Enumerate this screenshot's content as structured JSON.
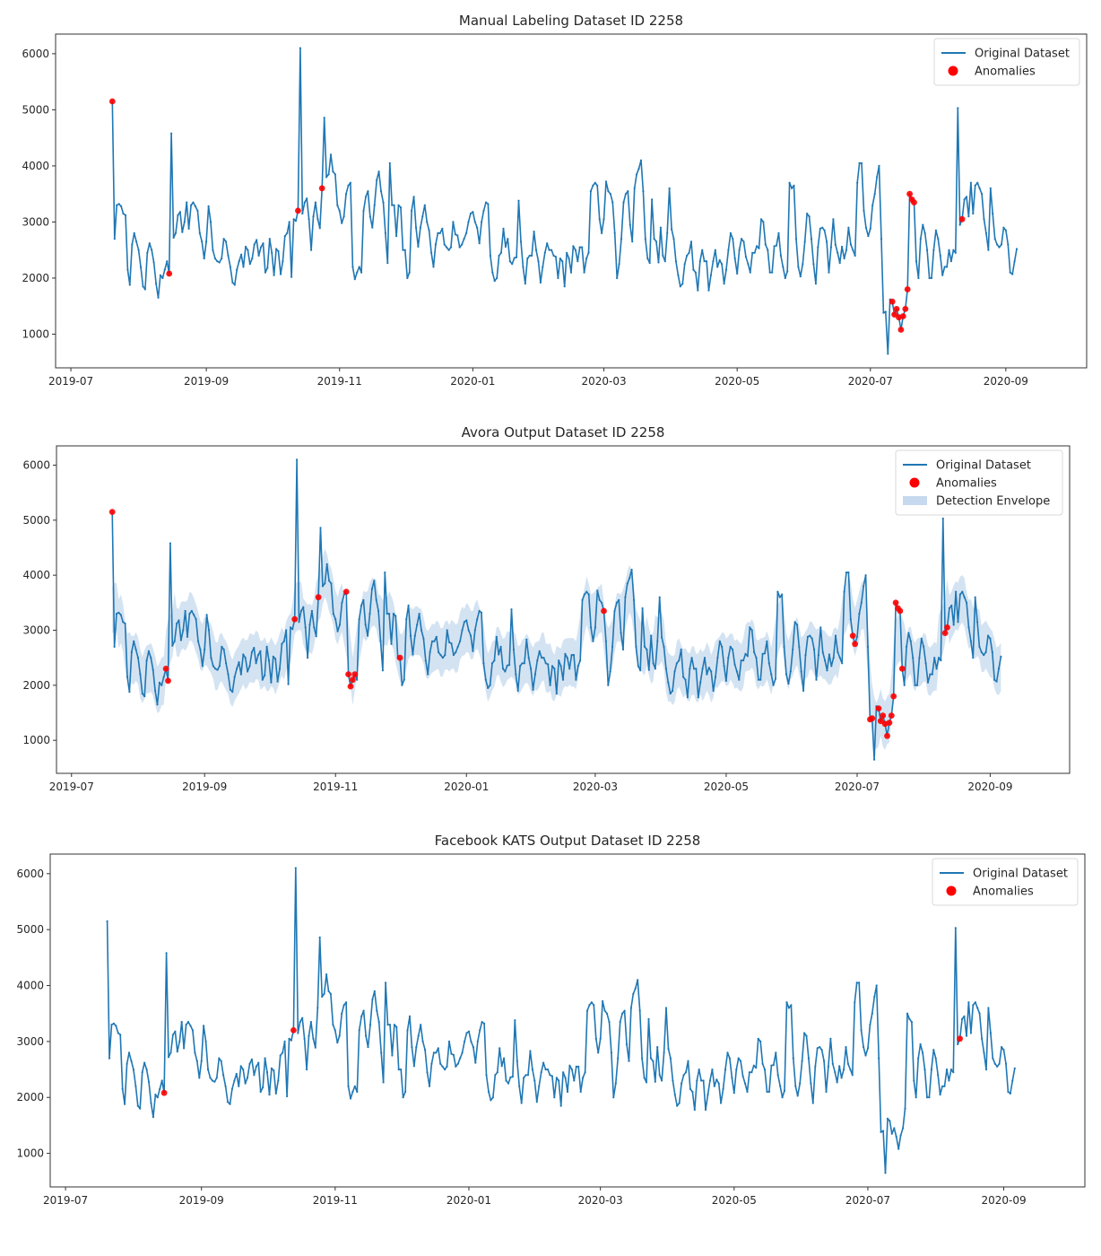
{
  "chart_data": [
    {
      "type": "line",
      "title": "Manual Labeling Dataset ID 2258",
      "xlabel": "",
      "ylabel": "",
      "ylim": [
        400,
        6350
      ],
      "xlim": [
        "2019-06-24",
        "2020-10-08"
      ],
      "x_ticks": [
        "2019-07",
        "2019-09",
        "2019-11",
        "2020-01",
        "2020-03",
        "2020-05",
        "2020-07",
        "2020-09"
      ],
      "y_ticks": [
        1000,
        2000,
        3000,
        4000,
        5000,
        6000
      ],
      "legend": {
        "placement": "top-right",
        "entries": [
          "Original Dataset",
          "Anomalies"
        ]
      },
      "series_ref": "series",
      "anomaly_dates": [
        "2019-07-20",
        "2019-08-15",
        "2019-10-13",
        "2019-10-24",
        "2020-07-11",
        "2020-07-12",
        "2020-07-13",
        "2020-07-14",
        "2020-07-15",
        "2020-07-16",
        "2020-07-17",
        "2020-07-18",
        "2020-07-19",
        "2020-07-20",
        "2020-07-21",
        "2020-08-12"
      ],
      "envelope": false
    },
    {
      "type": "line",
      "title": "Avora Output Dataset ID 2258",
      "xlabel": "",
      "ylabel": "",
      "ylim": [
        400,
        6350
      ],
      "xlim": [
        "2019-06-24",
        "2020-10-08"
      ],
      "x_ticks": [
        "2019-07",
        "2019-09",
        "2019-11",
        "2020-01",
        "2020-03",
        "2020-05",
        "2020-07",
        "2020-09"
      ],
      "y_ticks": [
        1000,
        2000,
        3000,
        4000,
        5000,
        6000
      ],
      "legend": {
        "placement": "top-right",
        "entries": [
          "Original Dataset",
          "Anomalies",
          "Detection Envelope"
        ]
      },
      "series_ref": "series",
      "anomaly_dates": [
        "2019-07-20",
        "2019-08-14",
        "2019-08-15",
        "2019-10-13",
        "2019-10-24",
        "2019-11-06",
        "2019-11-07",
        "2019-11-08",
        "2019-11-09",
        "2019-11-10",
        "2019-12-01",
        "2020-03-05",
        "2020-06-29",
        "2020-06-30",
        "2020-07-07",
        "2020-07-08",
        "2020-07-11",
        "2020-07-12",
        "2020-07-13",
        "2020-07-14",
        "2020-07-15",
        "2020-07-16",
        "2020-07-17",
        "2020-07-18",
        "2020-07-19",
        "2020-07-20",
        "2020-07-21",
        "2020-07-22",
        "2020-08-11",
        "2020-08-12"
      ],
      "envelope": true
    },
    {
      "type": "line",
      "title": "Facebook KATS Output Dataset ID 2258",
      "xlabel": "",
      "ylabel": "",
      "ylim": [
        400,
        6350
      ],
      "xlim": [
        "2019-06-24",
        "2020-10-08"
      ],
      "x_ticks": [
        "2019-07",
        "2019-09",
        "2019-11",
        "2020-01",
        "2020-03",
        "2020-05",
        "2020-07",
        "2020-09"
      ],
      "y_ticks": [
        1000,
        2000,
        3000,
        4000,
        5000,
        6000
      ],
      "legend": {
        "placement": "top-right",
        "entries": [
          "Original Dataset",
          "Anomalies"
        ]
      },
      "series_ref": "series",
      "anomaly_dates": [
        "2019-08-15",
        "2019-10-13",
        "2020-08-12"
      ],
      "envelope": false
    }
  ],
  "series": {
    "name": "Original Dataset",
    "start_date": "2019-07-20",
    "values": [
      5150,
      2700,
      3300,
      3320,
      3280,
      3150,
      3120,
      2150,
      1880,
      2600,
      2800,
      2650,
      2500,
      2200,
      1850,
      1800,
      2450,
      2620,
      2500,
      2280,
      1900,
      1650,
      2050,
      2000,
      2150,
      2300,
      2080,
      4580,
      2720,
      2800,
      3120,
      3180,
      2820,
      3000,
      3350,
      2880,
      3300,
      3350,
      3280,
      3200,
      2800,
      2650,
      2350,
      2650,
      3280,
      3000,
      2500,
      2350,
      2300,
      2280,
      2350,
      2700,
      2650,
      2400,
      2200,
      1920,
      1880,
      2150,
      2300,
      2420,
      2200,
      2560,
      2500,
      2250,
      2350,
      2600,
      2680,
      2400,
      2550,
      2620,
      2100,
      2180,
      2700,
      2450,
      2050,
      2520,
      2480,
      2070,
      2300,
      2750,
      2800,
      3000,
      2020,
      3050,
      3020,
      3200,
      6100,
      3150,
      3350,
      3420,
      3050,
      2500,
      3100,
      3350,
      3050,
      2890,
      3600,
      4860,
      3800,
      3850,
      4200,
      3900,
      3850,
      3300,
      3200,
      2980,
      3100,
      3500,
      3650,
      3700,
      2200,
      1980,
      2100,
      2200,
      2100,
      3200,
      3450,
      3550,
      3100,
      2900,
      3300,
      3750,
      3900,
      3550,
      3350,
      2800,
      2270,
      4050,
      3300,
      3300,
      2750,
      3300,
      3260,
      2500,
      2500,
      2000,
      2100,
      3200,
      3450,
      2900,
      2560,
      2900,
      3100,
      3300,
      3000,
      2850,
      2450,
      2200,
      2600,
      2800,
      2800,
      2880,
      2600,
      2550,
      2500,
      2550,
      3000,
      2780,
      2760,
      2550,
      2600,
      2700,
      2800,
      3000,
      3150,
      3180,
      3000,
      2900,
      2620,
      3000,
      3200,
      3350,
      3320,
      2400,
      2100,
      1950,
      2000,
      2400,
      2450,
      2880,
      2560,
      2700,
      2300,
      2250,
      2360,
      2370,
      3380,
      2650,
      2200,
      1900,
      2350,
      2400,
      2400,
      2830,
      2500,
      2300,
      1920,
      2200,
      2450,
      2620,
      2500,
      2500,
      2400,
      2380,
      2000,
      2350,
      2300,
      1850,
      2450,
      2350,
      2100,
      2570,
      2500,
      2300,
      2550,
      2550,
      2100,
      2350,
      2450,
      3550,
      3650,
      3700,
      3650,
      3050,
      2800,
      3050,
      3720,
      3550,
      3500,
      3350,
      2800,
      2000,
      2250,
      2700,
      3350,
      3500,
      3550,
      2950,
      2650,
      3600,
      3850,
      3950,
      4100,
      3550,
      2700,
      2350,
      2270,
      3400,
      2700,
      2650,
      2280,
      2900,
      2400,
      2300,
      2800,
      3600,
      2870,
      2700,
      2300,
      2050,
      1850,
      1900,
      2250,
      2400,
      2450,
      2650,
      2150,
      2100,
      1780,
      2300,
      2500,
      2300,
      2300,
      1780,
      2050,
      2300,
      2500,
      2200,
      2320,
      2250,
      1900,
      2150,
      2500,
      2800,
      2700,
      2350,
      2080,
      2500,
      2700,
      2650,
      2380,
      2250,
      2100,
      2450,
      2450,
      2570,
      2530,
      3050,
      3000,
      2600,
      2500,
      2100,
      2100,
      2570,
      2580,
      2800,
      2400,
      2200,
      2000,
      2120,
      3700,
      3600,
      3650,
      2700,
      2200,
      2030,
      2250,
      2650,
      3150,
      3100,
      2700,
      2250,
      1900,
      2550,
      2880,
      2900,
      2850,
      2650,
      2100,
      2550,
      3050,
      2600,
      2450,
      2270,
      2560,
      2350,
      2500,
      2900,
      2600,
      2500,
      2400,
      3700,
      4050,
      4050,
      3200,
      2900,
      2750,
      2880,
      3300,
      3500,
      3800,
      4000,
      2700,
      1380,
      1400,
      650,
      1620,
      1580,
      1350,
      1450,
      1300,
      1080,
      1320,
      1450,
      1800,
      3500,
      3400,
      3350,
      2300,
      2000,
      2700,
      2950,
      2800,
      2500,
      2000,
      2000,
      2500,
      2850,
      2700,
      2400,
      2050,
      2200,
      2200,
      2500,
      2300,
      2500,
      2450,
      5030,
      2950,
      3050,
      3400,
      3450,
      3100,
      3700,
      3150,
      3650,
      3700,
      3600,
      3500,
      3050,
      2800,
      2500,
      3600,
      3150,
      2700,
      2600,
      2550,
      2600,
      2900,
      2850,
      2600,
      2100,
      2070,
      2300,
      2520
    ],
    "envelope_halfwidth": 420
  },
  "colors": {
    "line": "#1f77b4",
    "anomaly": "#ff0000",
    "envelope": "#c6d9ee",
    "axis": "#333333"
  }
}
